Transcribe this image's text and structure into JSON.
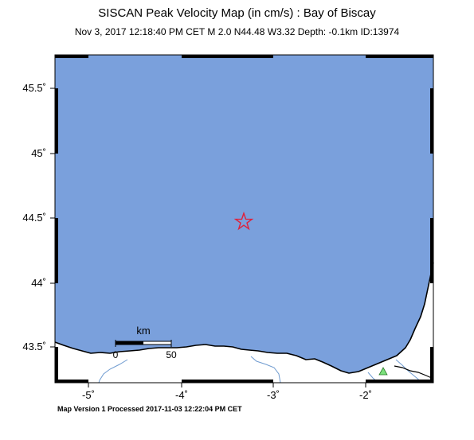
{
  "header": {
    "title": "SISCAN Peak Velocity Map (in cm/s) : Bay of Biscay",
    "subtitle": "Nov  3, 2017 12:18:40 PM CET   M 2.0   N44.48 W3.32   Depth: -0.1km   ID:13974"
  },
  "footer": {
    "processed": "Map Version 1 Processed 2017-11-03 12:22:04 PM CET"
  },
  "map": {
    "lat_ticks": [
      "45.5˚",
      "45˚",
      "44.5˚",
      "44˚",
      "43.5˚"
    ],
    "lon_ticks": [
      "-5˚",
      "-4˚",
      "-3˚",
      "-2˚"
    ],
    "scale_bar": {
      "unit": "km",
      "start": "0",
      "end": "50"
    },
    "colors": {
      "sea": "#7aa0dc",
      "land": "#ffffff",
      "coast": "#000000",
      "rivers": "#6f9bd0",
      "epicenter": "#e0203a",
      "station": "#7be07b"
    },
    "epicenter": {
      "lat": 44.48,
      "lon": -3.32,
      "symbol": "star-icon"
    },
    "stations": [
      {
        "symbol": "triangle-icon",
        "lat": 43.32,
        "lon": -1.78
      }
    ]
  }
}
